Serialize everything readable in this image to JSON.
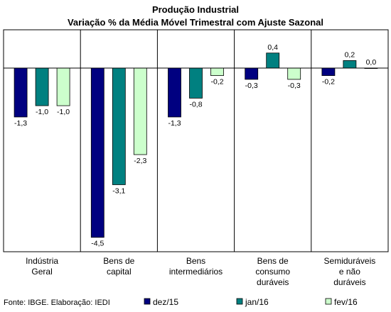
{
  "chart_data": {
    "type": "bar",
    "title": "Produção Industrial",
    "subtitle": "Variação % da Média Móvel Trimestral com Ajuste Sazonal",
    "categories": [
      [
        "Indústria",
        "Geral"
      ],
      [
        "Bens de",
        "capital"
      ],
      [
        "Bens",
        "intermediários"
      ],
      [
        "Bens de",
        "consumo",
        "duráveis"
      ],
      [
        "Semiduráveis",
        "e não",
        "duráveis"
      ]
    ],
    "series": [
      {
        "name": "dez/15",
        "color": "#000080",
        "values": [
          -1.3,
          -4.5,
          -1.3,
          -0.3,
          -0.2
        ],
        "labels": [
          "-1,3",
          "-4,5",
          "-1,3",
          "-0,3",
          "-0,2"
        ]
      },
      {
        "name": "jan/16",
        "color": "#008080",
        "values": [
          -1.0,
          -3.1,
          -0.8,
          0.4,
          0.2
        ],
        "labels": [
          "-1,0",
          "-3,1",
          "-0,8",
          "0,4",
          "0,2"
        ]
      },
      {
        "name": "fev/16",
        "color": "#CCFFCC",
        "values": [
          -1.0,
          -2.3,
          -0.2,
          -0.3,
          0.0
        ],
        "labels": [
          "-1,0",
          "-2,3",
          "-0,2",
          "-0,3",
          "0,0"
        ]
      }
    ],
    "ylim": [
      -5.0,
      0.9
    ],
    "grid": false,
    "legend_position": "bottom-right",
    "source": "Fonte: IBGE. Elaboração: IEDI"
  }
}
